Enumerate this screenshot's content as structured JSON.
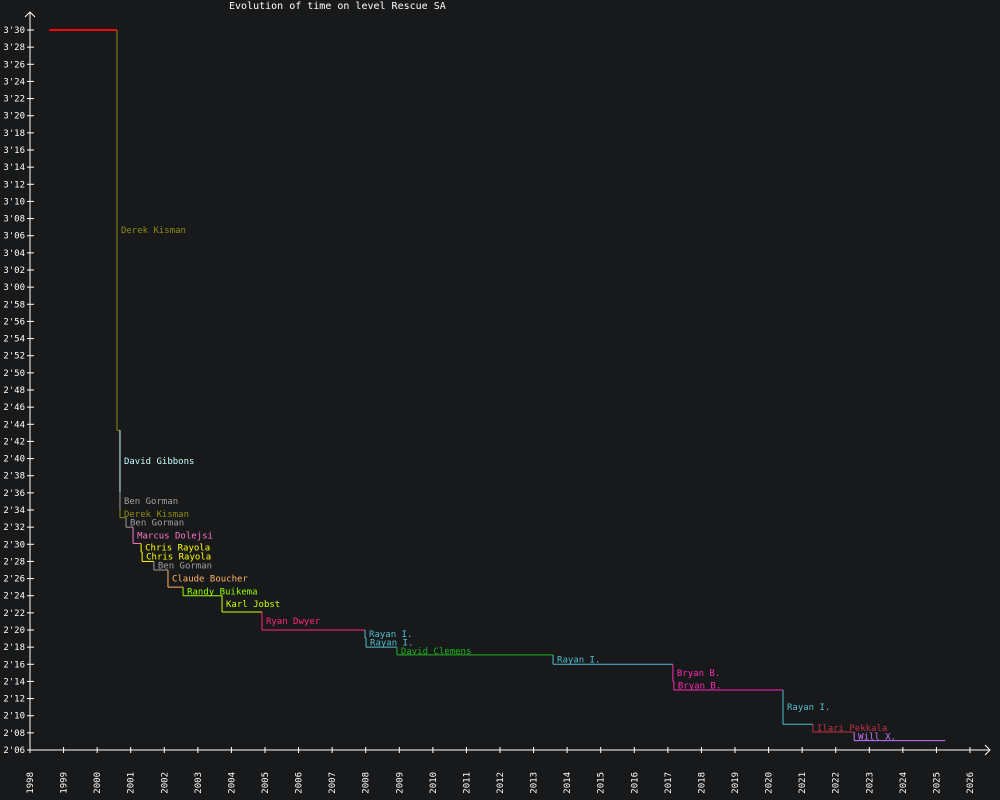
{
  "chart_data": {
    "type": "line",
    "title": "Evolution of time on level Rescue SA",
    "xlim": [
      1998,
      2026
    ],
    "ylim_seconds": [
      126,
      210
    ],
    "grid": false,
    "x_tick_labels": [
      "1998",
      "1999",
      "2000",
      "2001",
      "2002",
      "2003",
      "2004",
      "2005",
      "2006",
      "2007",
      "2008",
      "2009",
      "2010",
      "2011",
      "2012",
      "2013",
      "2014",
      "2015",
      "2016",
      "2017",
      "2018",
      "2019",
      "2020",
      "2021",
      "2022",
      "2023",
      "2024",
      "2025",
      "2026"
    ],
    "y_tick_labels": [
      "2'06",
      "2'08",
      "2'10",
      "2'12",
      "2'14",
      "2'16",
      "2'18",
      "2'20",
      "2'22",
      "2'24",
      "2'26",
      "2'28",
      "2'30",
      "2'32",
      "2'34",
      "2'36",
      "2'38",
      "2'40",
      "2'42",
      "2'44",
      "2'46",
      "2'48",
      "2'50",
      "2'52",
      "2'54",
      "2'56",
      "2'58",
      "3'00",
      "3'02",
      "3'04",
      "3'06",
      "3'08",
      "3'10",
      "3'12",
      "3'14",
      "3'16",
      "3'18",
      "3'20",
      "3'22",
      "3'24",
      "3'26",
      "3'28",
      "3'30"
    ],
    "start": {
      "date": 1998.57,
      "time_s": 210.0,
      "color": "#ff0000"
    },
    "end_date": 2025.26,
    "records": [
      {
        "player": "Derek Kisman",
        "date": 2000.59,
        "time_s": 163.3,
        "color": "#8c8c10"
      },
      {
        "player": "David Gibbons",
        "date": 2000.68,
        "time_s": 156.1,
        "color": "#c8ffff"
      },
      {
        "player": "Ben Gorman",
        "date": 2000.68,
        "time_s": 154.0,
        "color": "#a0a0a0"
      },
      {
        "player": "Derek Kisman",
        "date": 2000.68,
        "time_s": 153.1,
        "color": "#8c8c10"
      },
      {
        "player": "Ben Gorman",
        "date": 2000.86,
        "time_s": 152.0,
        "color": "#a0a0a0"
      },
      {
        "player": "Marcus Dolejsi",
        "date": 2001.07,
        "time_s": 150.1,
        "color": "#ff78c8"
      },
      {
        "player": "Chris Rayola",
        "date": 2001.31,
        "time_s": 149.1,
        "color": "#ffff00"
      },
      {
        "player": "Chris Rayola",
        "date": 2001.34,
        "time_s": 148.0,
        "color": "#ffff00"
      },
      {
        "player": "Ben Gorman",
        "date": 2001.69,
        "time_s": 147.0,
        "color": "#a0a0a0"
      },
      {
        "player": "Claude Boucher",
        "date": 2002.11,
        "time_s": 145.0,
        "color": "#ffb464"
      },
      {
        "player": "Randy Buikema",
        "date": 2002.56,
        "time_s": 144.0,
        "color": "#96ff00"
      },
      {
        "player": "Karl Jobst",
        "date": 2003.72,
        "time_s": 142.1,
        "color": "#d2ff00"
      },
      {
        "player": "Ryan Dwyer",
        "date": 2004.91,
        "time_s": 140.0,
        "color": "#ff2878"
      },
      {
        "player": "Rayan I.",
        "date": 2007.98,
        "time_s": 139.1,
        "color": "#50c0d0"
      },
      {
        "player": "Rayan I.",
        "date": 2008.01,
        "time_s": 138.0,
        "color": "#50c0d0"
      },
      {
        "player": "David Clemens",
        "date": 2008.93,
        "time_s": 137.1,
        "color": "#1eb41e"
      },
      {
        "player": "Rayan I.",
        "date": 2013.58,
        "time_s": 136.0,
        "color": "#50c0d0"
      },
      {
        "player": "Bryan B.",
        "date": 2017.15,
        "time_s": 134.0,
        "color": "#ff28b4"
      },
      {
        "player": "Bryan B.",
        "date": 2017.18,
        "time_s": 133.0,
        "color": "#ff28b4"
      },
      {
        "player": "Rayan I.",
        "date": 2020.43,
        "time_s": 129.0,
        "color": "#50c0d0"
      },
      {
        "player": "Ilari Pekkala",
        "date": 2021.32,
        "time_s": 128.1,
        "color": "#c03246"
      },
      {
        "player": "Will X.",
        "date": 2022.55,
        "time_s": 127.1,
        "color": "#c878ff"
      }
    ]
  }
}
